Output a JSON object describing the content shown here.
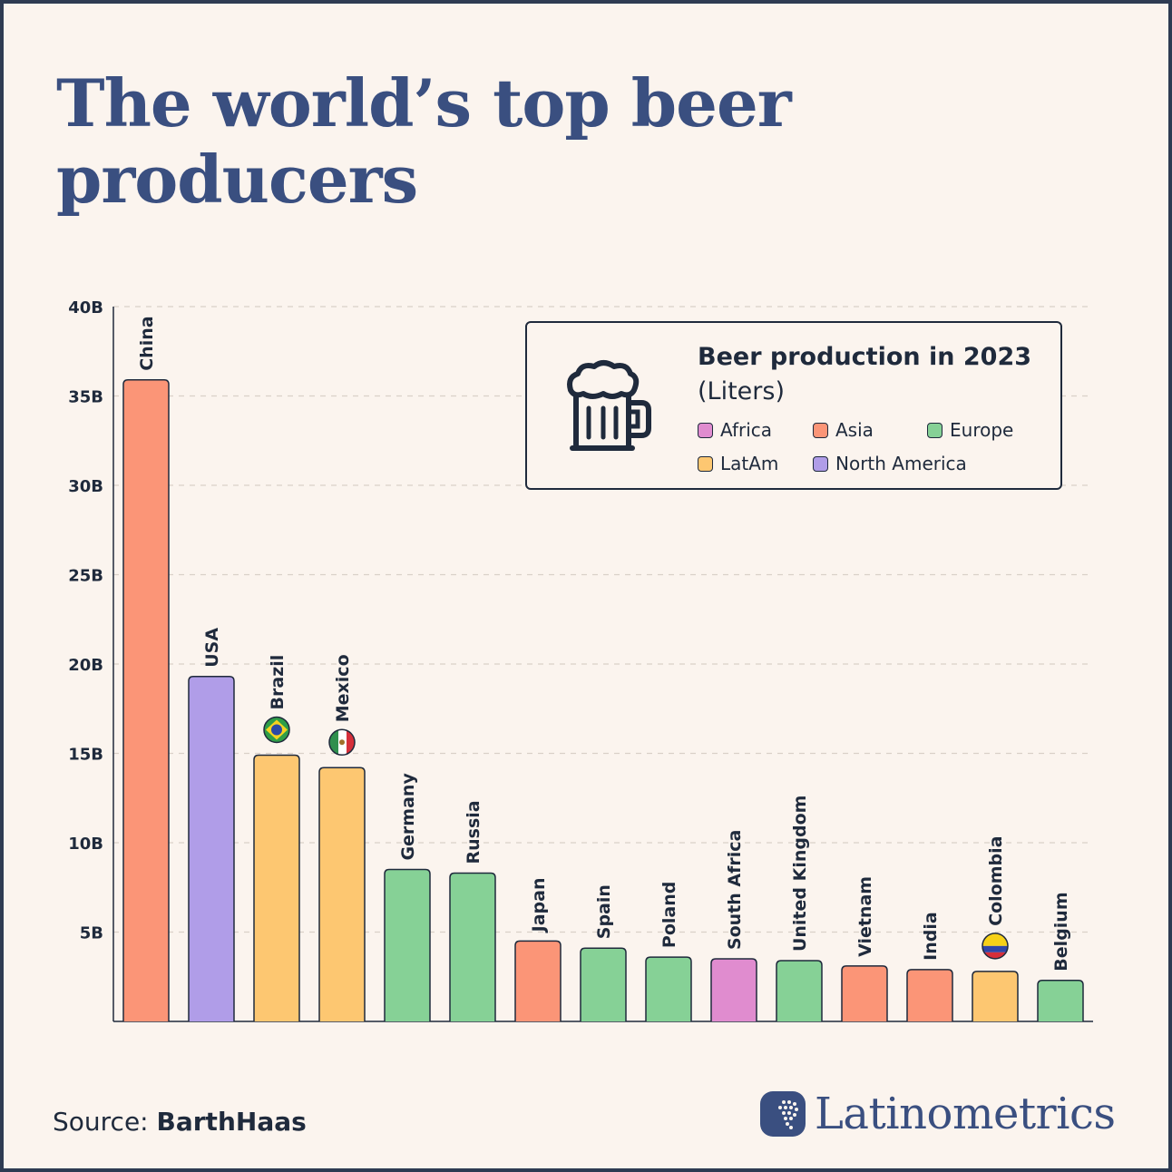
{
  "title": "The world’s top beer producers",
  "legend": {
    "title": "Beer production in 2023",
    "subtitle": "(Liters)",
    "icon": "beer-mug-icon",
    "items": [
      {
        "label": "Africa",
        "color": "#e08ccf"
      },
      {
        "label": "Asia",
        "color": "#fb9577"
      },
      {
        "label": "Europe",
        "color": "#86d196"
      },
      {
        "label": "LatAm",
        "color": "#fdc771"
      },
      {
        "label": "North America",
        "color": "#b09de8"
      }
    ]
  },
  "source": {
    "prefix": "Source:",
    "name": "BarthHaas"
  },
  "brand": {
    "name": "Latinometrics",
    "icon": "latinometrics-logo-icon"
  },
  "chart_data": {
    "type": "bar",
    "ylim": [
      0,
      40
    ],
    "yticks": [
      {
        "value": 5,
        "label": "5B"
      },
      {
        "value": 10,
        "label": "10B"
      },
      {
        "value": 15,
        "label": "15B"
      },
      {
        "value": 20,
        "label": "20B"
      },
      {
        "value": 25,
        "label": "25B"
      },
      {
        "value": 30,
        "label": "30B"
      },
      {
        "value": 35,
        "label": "35B"
      },
      {
        "value": 40,
        "label": "40B"
      }
    ],
    "grid": true,
    "legend_position": "top-right",
    "categories": [
      "China",
      "USA",
      "Brazil",
      "Mexico",
      "Germany",
      "Russia",
      "Japan",
      "Spain",
      "Poland",
      "South Africa",
      "United Kingdom",
      "Vietnam",
      "India",
      "Colombia",
      "Belgium"
    ],
    "values": [
      35.9,
      19.3,
      14.9,
      14.2,
      8.5,
      8.3,
      4.5,
      4.1,
      3.6,
      3.5,
      3.4,
      3.1,
      2.9,
      2.8,
      2.3
    ],
    "regions": [
      "Asia",
      "North America",
      "LatAm",
      "LatAm",
      "Europe",
      "Europe",
      "Asia",
      "Europe",
      "Europe",
      "Africa",
      "Europe",
      "Asia",
      "Asia",
      "LatAm",
      "Europe"
    ],
    "flags": {
      "Brazil": "brazil-flag-icon",
      "Mexico": "mexico-flag-icon",
      "Colombia": "colombia-flag-icon"
    }
  }
}
